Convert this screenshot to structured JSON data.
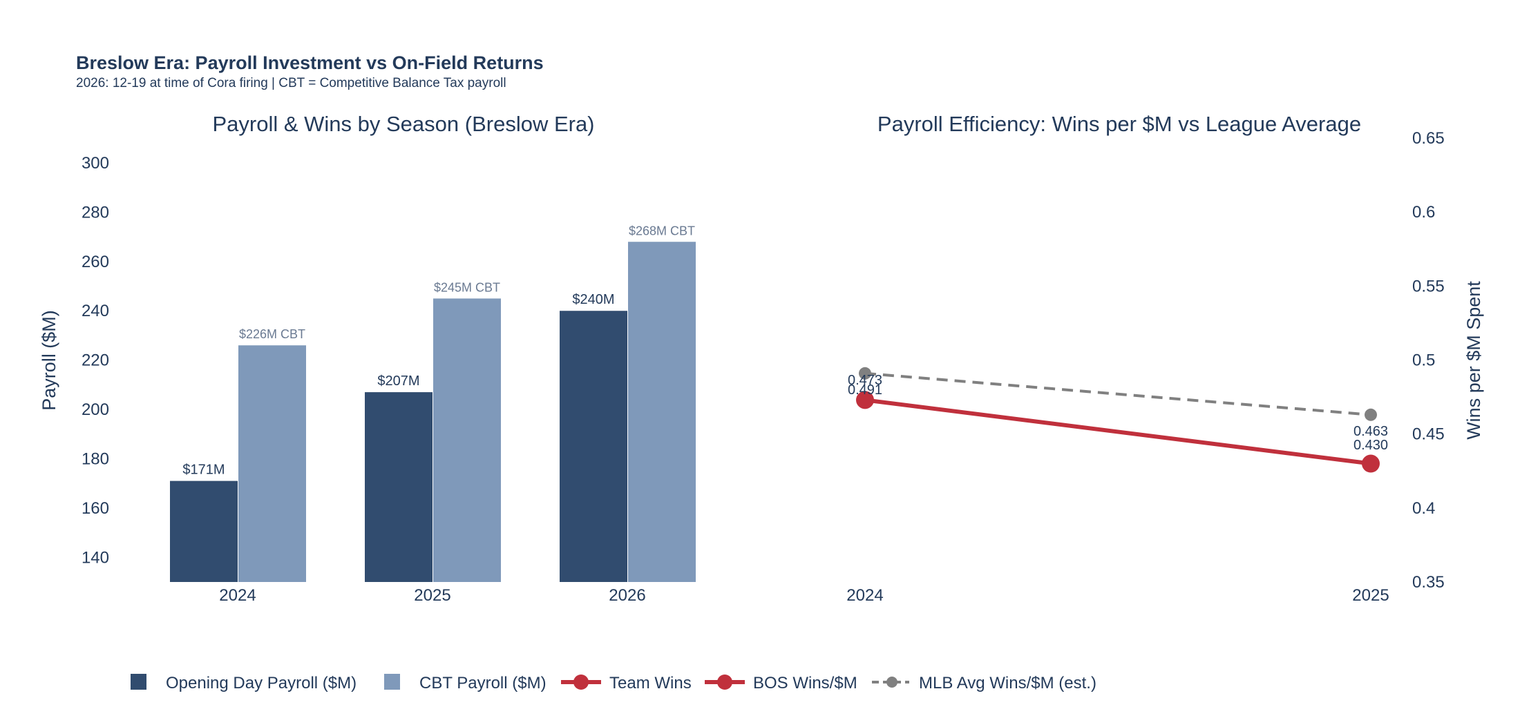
{
  "title": "Breslow Era: Payroll Investment vs On-Field Returns",
  "subtitle": "2026: 12-19 at time of Cora firing | CBT = Competitive Balance Tax payroll",
  "colors": {
    "opening_day": "#314c6f",
    "cbt": "#7f99ba",
    "bos_line": "#c0303c",
    "mlb_avg": "#808080",
    "text": "#233a5a",
    "cbt_label": "#6a7a92"
  },
  "legend": {
    "opening_day": "Opening Day Payroll ($M)",
    "cbt": "CBT Payroll ($M)",
    "team_wins": "Team Wins",
    "bos_wins_per_m": "BOS Wins/$M",
    "mlb_avg": "MLB Avg Wins/$M (est.)"
  },
  "chart_data": [
    {
      "type": "bar",
      "title": "Payroll & Wins by Season (Breslow Era)",
      "ylabel": "Payroll ($M)",
      "xlabel": "",
      "ylim": [
        130,
        300
      ],
      "yticks": [
        140,
        160,
        180,
        200,
        220,
        240,
        260,
        280,
        300
      ],
      "categories": [
        "2024",
        "2025",
        "2026"
      ],
      "series": [
        {
          "name": "Opening Day Payroll ($M)",
          "values": [
            171,
            207,
            240
          ],
          "labels": [
            "$171M",
            "$207M",
            "$240M"
          ]
        },
        {
          "name": "CBT Payroll ($M)",
          "values": [
            226,
            245,
            268
          ],
          "labels": [
            "$226M CBT",
            "$245M CBT",
            "$268M CBT"
          ]
        }
      ],
      "grid": false
    },
    {
      "type": "line",
      "title": "Payroll Efficiency: Wins per $M vs League Average",
      "ylabel": "Wins per $M Spent",
      "y_axis_side": "right",
      "ylim": [
        0.35,
        0.65
      ],
      "yticks": [
        "0.35",
        "0.4",
        "0.45",
        "0.5",
        "0.55",
        "0.6",
        "0.65"
      ],
      "x": [
        "2024",
        "2025"
      ],
      "series": [
        {
          "name": "BOS Wins/$M",
          "values": [
            0.473,
            0.43
          ],
          "labels": [
            "0.473",
            "0.430"
          ]
        },
        {
          "name": "MLB Avg Wins/$M (est.)",
          "values": [
            0.491,
            0.463
          ],
          "labels": [
            "0.491",
            "0.463"
          ],
          "dashed": true
        }
      ],
      "grid": false
    }
  ]
}
